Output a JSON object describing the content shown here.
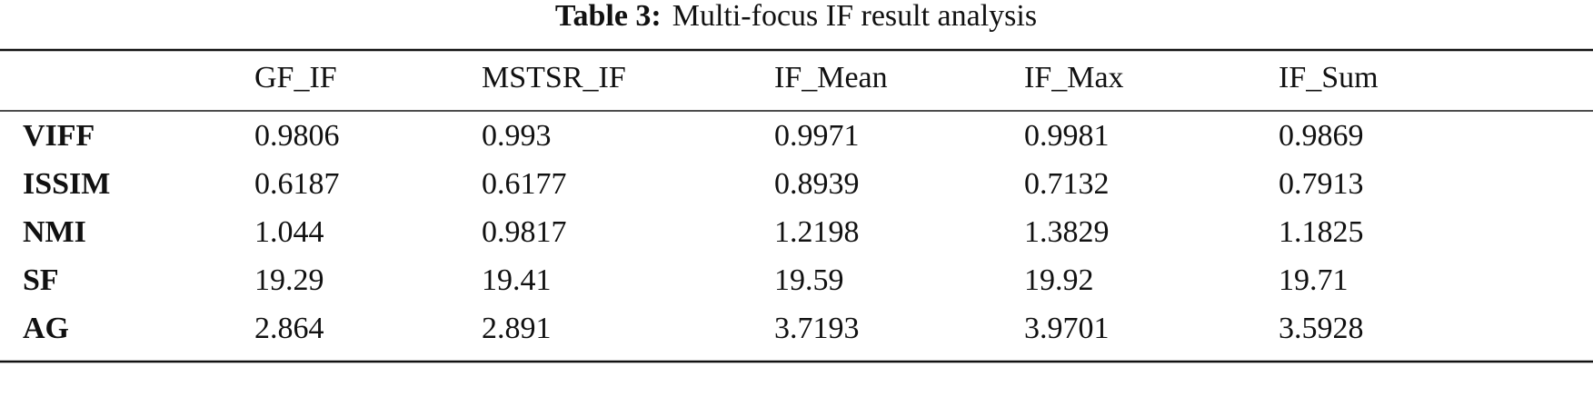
{
  "caption": {
    "label": "Table 3:",
    "text": "Multi-focus IF result analysis"
  },
  "table": {
    "header": [
      "GF_IF",
      "MSTSR_IF",
      "IF_Mean",
      "IF_Max",
      "IF_Sum"
    ],
    "rows": [
      [
        "VIFF",
        "0.9806",
        "0.993",
        "0.9971",
        "0.9981",
        "0.9869"
      ],
      [
        "ISSIM",
        "0.6187",
        "0.6177",
        "0.8939",
        "0.7132",
        "0.7913"
      ],
      [
        "NMI",
        "1.044",
        "0.9817",
        "1.2198",
        "1.3829",
        "1.1825"
      ],
      [
        "SF",
        "19.29",
        "19.41",
        "19.59",
        "19.92",
        "19.71"
      ],
      [
        "AG",
        "2.864",
        "2.891",
        "3.7193",
        "3.9701",
        "3.5928"
      ]
    ]
  }
}
